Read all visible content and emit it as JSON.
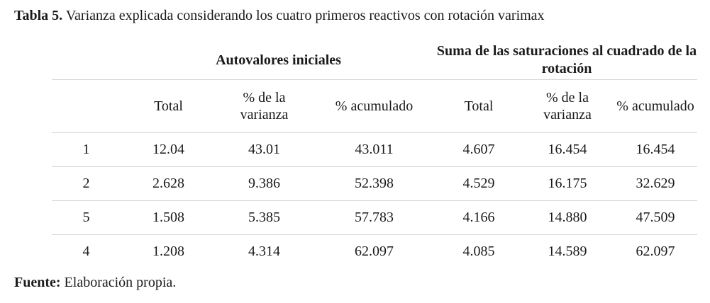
{
  "caption": {
    "label": "Tabla 5.",
    "text": " Varianza explicada considerando los cuatro primeros reactivos con rotación varimax"
  },
  "table": {
    "groups": [
      "Autovalores iniciales",
      "Suma de las saturaciones al cuadrado de la rotación"
    ],
    "columns": [
      "",
      "Total",
      "% de la varianza",
      "% acumulado",
      "Total",
      "% de la varianza",
      "% acumulado"
    ],
    "rows": [
      [
        "1",
        "12.04",
        "43.01",
        "43.011",
        "4.607",
        "16.454",
        "16.454"
      ],
      [
        "2",
        "2.628",
        "9.386",
        "52.398",
        "4.529",
        "16.175",
        "32.629"
      ],
      [
        "5",
        "1.508",
        "5.385",
        "57.783",
        "4.166",
        "14.880",
        "47.509"
      ],
      [
        "4",
        "1.208",
        "4.314",
        "62.097",
        "4.085",
        "14.589",
        "62.097"
      ]
    ]
  },
  "footer": {
    "label": "Fuente:",
    "text": " Elaboración propia."
  }
}
